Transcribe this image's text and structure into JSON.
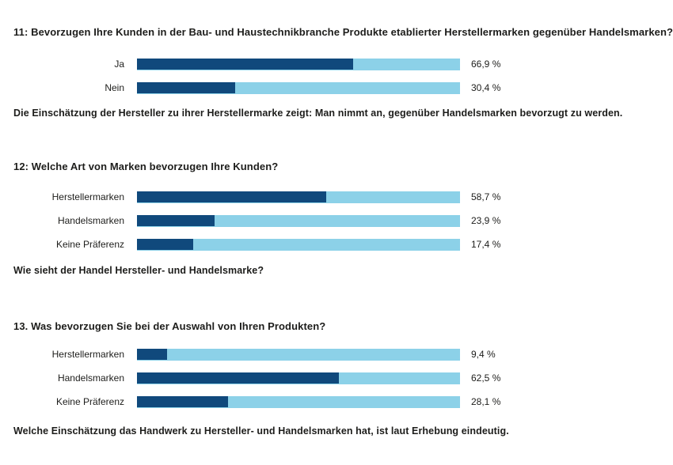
{
  "colors": {
    "bar_fill": "#10497c",
    "bar_track": "#8cd1e8",
    "text": "#1d1d1b",
    "background": "#ffffff"
  },
  "chart_data": [
    {
      "type": "bar",
      "orientation": "horizontal",
      "title": "11: Bevorzugen Ihre Kunden in der Bau- und Haustechnikbranche Produkte etablierter Herstellermarken gegenüber Handelsmarken?",
      "categories": [
        "Ja",
        "Nein"
      ],
      "values": [
        66.9,
        30.4
      ],
      "value_labels": [
        "66,9 %",
        "30,4 %"
      ],
      "xlim": [
        0,
        100
      ],
      "grid": false,
      "legend": "none",
      "caption": "Die Einschätzung der Hersteller zu ihrer Herstellermarke zeigt: Man nimmt an, gegenüber Handelsmarken bevorzugt zu werden."
    },
    {
      "type": "bar",
      "orientation": "horizontal",
      "title": "12: Welche Art von Marken bevorzugen Ihre Kunden?",
      "categories": [
        "Herstellermarken",
        "Handelsmarken",
        "Keine Präferenz"
      ],
      "values": [
        58.7,
        23.9,
        17.4
      ],
      "value_labels": [
        "58,7 %",
        "23,9 %",
        "17,4 %"
      ],
      "xlim": [
        0,
        100
      ],
      "grid": false,
      "legend": "none",
      "caption": "Wie sieht der Handel Hersteller- und Handelsmarke?"
    },
    {
      "type": "bar",
      "orientation": "horizontal",
      "title": "13. Was bevorzugen Sie bei der Auswahl von Ihren Produkten?",
      "categories": [
        "Herstellermarken",
        "Handelsmarken",
        "Keine Präferenz"
      ],
      "values": [
        9.4,
        62.5,
        28.1
      ],
      "value_labels": [
        "9,4 %",
        "62,5 %",
        "28,1 %"
      ],
      "xlim": [
        0,
        100
      ],
      "grid": false,
      "legend": "none",
      "caption": "Welche Einschätzung das Handwerk zu Hersteller- und Handelsmarken hat, ist laut Erhebung eindeutig."
    }
  ]
}
